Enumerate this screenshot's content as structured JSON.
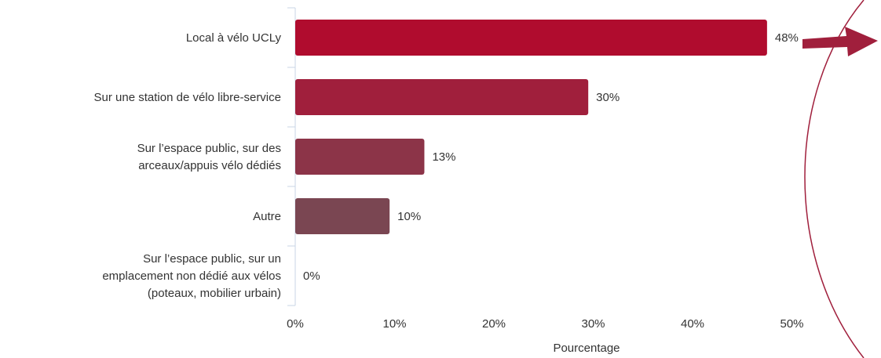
{
  "chart_data": {
    "type": "bar",
    "orientation": "horizontal",
    "categories": [
      [
        "Local à vélo UCLy"
      ],
      [
        "Sur une station de vélo libre-service"
      ],
      [
        "Sur l’espace public, sur des",
        "arceaux/appuis vélo dédiés"
      ],
      [
        "Autre"
      ],
      [
        "Sur l’espace public, sur un",
        "emplacement non dédié aux vélos",
        "(poteaux, mobilier urbain)"
      ]
    ],
    "values": [
      47.5,
      29.5,
      13,
      9.5,
      0
    ],
    "data_labels": [
      "48%",
      "30%",
      "13%",
      "10%",
      "0%"
    ],
    "bar_colors": [
      "#b00c2e",
      "#a01f3c",
      "#8c3448",
      "#7a4652",
      "#7a4652"
    ],
    "xlabel": "Pourcentage",
    "xlim": [
      0,
      55
    ],
    "x_ticks": [
      0,
      10,
      20,
      30,
      40,
      50
    ],
    "x_tick_labels": [
      "0%",
      "10%",
      "20%",
      "30%",
      "40%",
      "50%"
    ],
    "grid": false
  },
  "decorations": {
    "arrow_color": "#a01f3c",
    "arc_color": "#a01f3c"
  }
}
